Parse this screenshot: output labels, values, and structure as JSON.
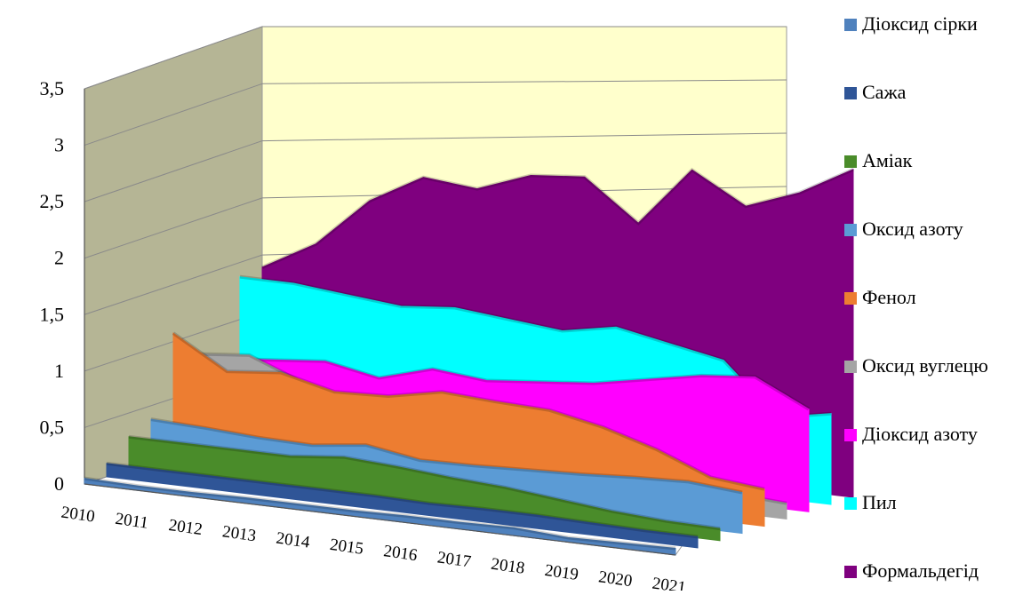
{
  "chart_data": {
    "type": "area",
    "title": "",
    "xlabel": "",
    "ylabel": "",
    "ylim": [
      0,
      3.5
    ],
    "yticks": [
      "0",
      "0,5",
      "1",
      "1,5",
      "2",
      "2,5",
      "3",
      "3,5"
    ],
    "categories": [
      "2010",
      "2011",
      "2012",
      "2013",
      "2014",
      "2015",
      "2016",
      "2017",
      "2018",
      "2019",
      "2020",
      "2021"
    ],
    "grid": true,
    "legend_position": "right",
    "series": [
      {
        "name": "Діоксид сірки",
        "color": "#4f81bd",
        "values": [
          0.05,
          0.04,
          0.04,
          0.05,
          0.05,
          0.05,
          0.06,
          0.06,
          0.07,
          0.04,
          0.05,
          0.06
        ]
      },
      {
        "name": "Сажа",
        "color": "#2f5597",
        "values": [
          0.12,
          0.12,
          0.12,
          0.12,
          0.12,
          0.12,
          0.11,
          0.12,
          0.12,
          0.11,
          0.1,
          0.1
        ]
      },
      {
        "name": "Аміак",
        "color": "#4a8c2a",
        "values": [
          0.3,
          0.3,
          0.3,
          0.3,
          0.35,
          0.32,
          0.28,
          0.25,
          0.2,
          0.15,
          0.12,
          0.11
        ]
      },
      {
        "name": "Оксид азоту",
        "color": "#5b9bd5",
        "values": [
          0.4,
          0.38,
          0.35,
          0.34,
          0.4,
          0.32,
          0.33,
          0.35,
          0.37,
          0.4,
          0.42,
          0.38
        ]
      },
      {
        "name": "Фенол",
        "color": "#ed7d31",
        "values": [
          1.15,
          0.85,
          0.9,
          0.78,
          0.8,
          0.9,
          0.87,
          0.85,
          0.75,
          0.6,
          0.4,
          0.35
        ]
      },
      {
        "name": "Оксид вуглецю",
        "color": "#a5a5a5",
        "values": [
          0.9,
          0.95,
          0.75,
          0.45,
          0.35,
          0.3,
          0.3,
          0.25,
          0.22,
          0.2,
          0.18,
          0.15
        ]
      },
      {
        "name": "Діоксид азоту",
        "color": "#ff00ff",
        "values": [
          0.8,
          0.85,
          0.9,
          0.8,
          0.95,
          0.9,
          0.95,
          1.0,
          1.1,
          1.2,
          1.25,
          1.0
        ]
      },
      {
        "name": "Пил",
        "color": "#00ffff",
        "values": [
          1.55,
          1.55,
          1.5,
          1.45,
          1.5,
          1.45,
          1.4,
          1.5,
          1.4,
          1.3,
          0.8,
          0.9
        ]
      },
      {
        "name": "Формальдегід",
        "color": "#7f007f",
        "values": [
          1.6,
          1.9,
          2.4,
          2.7,
          2.65,
          2.85,
          2.9,
          2.5,
          3.1,
          2.8,
          3.0,
          3.3
        ]
      }
    ]
  }
}
